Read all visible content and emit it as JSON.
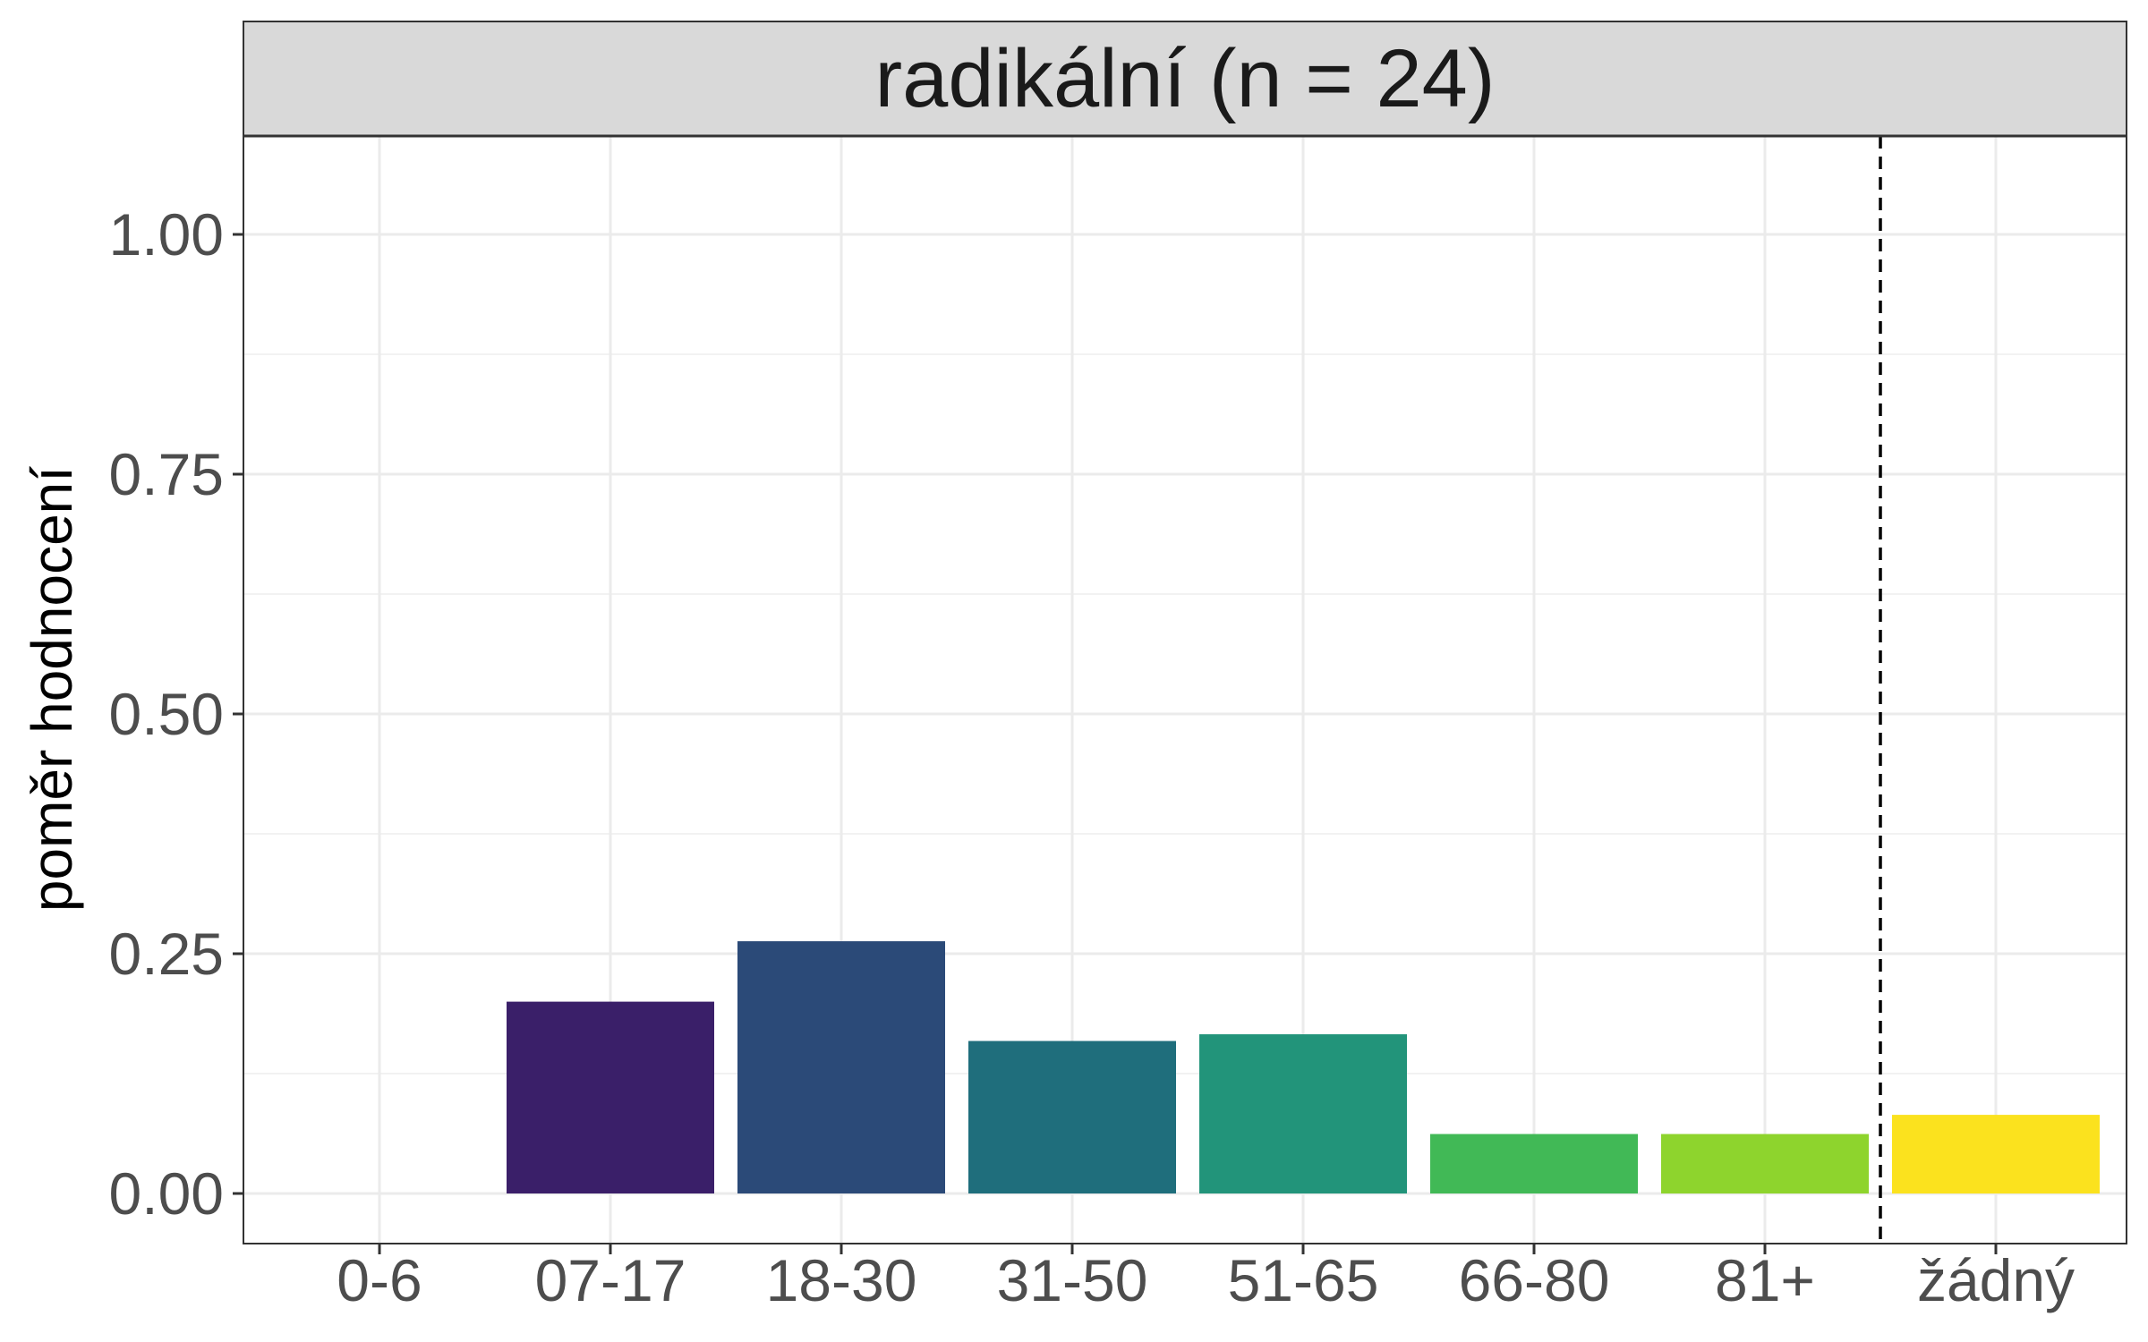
{
  "chart_data": {
    "type": "bar",
    "title": "radikální (n = 24)",
    "xlabel": "",
    "ylabel": "poměr hodnocení",
    "categories": [
      "0-6",
      "07-17",
      "18-30",
      "31-50",
      "51-65",
      "66-80",
      "81+",
      "žádný"
    ],
    "values": [
      0.0,
      0.2,
      0.263,
      0.159,
      0.166,
      0.062,
      0.062,
      0.082
    ],
    "colors": [
      "#440154",
      "#3A1F69",
      "#2B4A78",
      "#1F6E7C",
      "#22947A",
      "#41B956",
      "#8ED42D",
      "#FBE21E"
    ],
    "ylim": [
      -0.05,
      1.1
    ],
    "y_ticks": [
      "0.00",
      "0.25",
      "0.50",
      "0.75",
      "1.00"
    ],
    "y_tick_values": [
      0,
      0.25,
      0.5,
      0.75,
      1.0
    ],
    "reference_line": {
      "between": [
        "81+",
        "žádný"
      ],
      "style": "dashed"
    },
    "grid": true,
    "legend": "none"
  }
}
